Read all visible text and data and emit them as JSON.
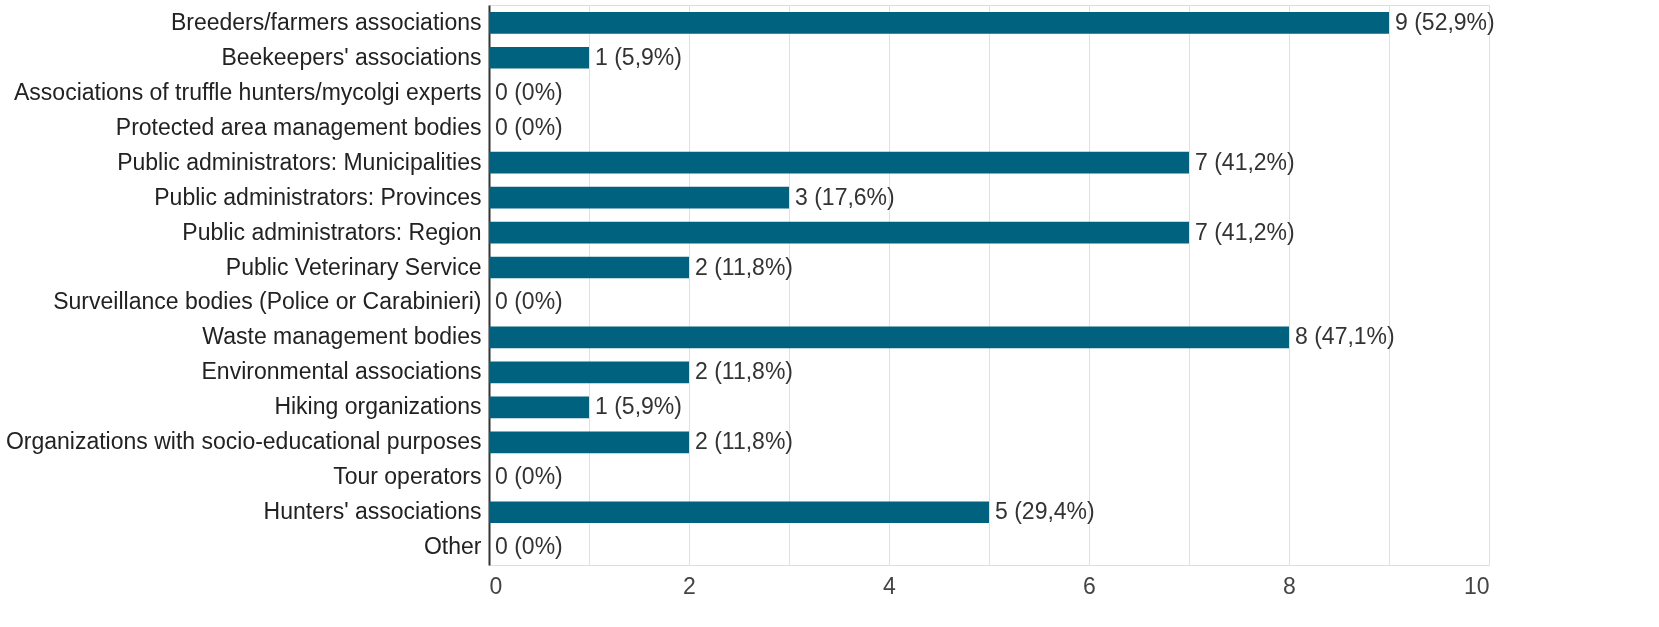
{
  "chart_data": {
    "type": "bar",
    "orientation": "horizontal",
    "categories": [
      "Breeders/farmers associations",
      "Beekeepers' associations",
      "Associations of truffle hunters/mycolgi experts",
      "Protected area management bodies",
      "Public administrators: Municipalities",
      "Public administrators: Provinces",
      "Public administrators: Region",
      "Public Veterinary Service",
      "Surveillance bodies (Police or Carabinieri)",
      "Waste management bodies",
      "Environmental associations",
      "Hiking organizations",
      "Organizations with socio-educational purposes",
      "Tour operators",
      "Hunters' associations",
      "Other"
    ],
    "values": [
      9,
      1,
      0,
      0,
      7,
      3,
      7,
      2,
      0,
      8,
      2,
      1,
      2,
      0,
      5,
      0
    ],
    "value_labels": [
      "9 (52,9%)",
      "1 (5,9%)",
      "0 (0%)",
      "0 (0%)",
      "7 (41,2%)",
      "3 (17,6%)",
      "7 (41,2%)",
      "2 (11,8%)",
      "0 (0%)",
      "8 (47,1%)",
      "2 (11,8%)",
      "1 (5,9%)",
      "2 (11,8%)",
      "0 (0%)",
      "5 (29,4%)",
      "0 (0%)"
    ],
    "color": "#00627f",
    "xlim": [
      0,
      10
    ],
    "xticks": [
      0,
      {
        "value": 1,
        "label": null
      },
      2,
      {
        "value": 3,
        "label": null
      },
      4,
      {
        "value": 5,
        "label": null
      },
      6,
      {
        "value": 7,
        "label": null
      },
      8,
      {
        "value": 9,
        "label": null
      },
      10
    ],
    "grid": true
  }
}
